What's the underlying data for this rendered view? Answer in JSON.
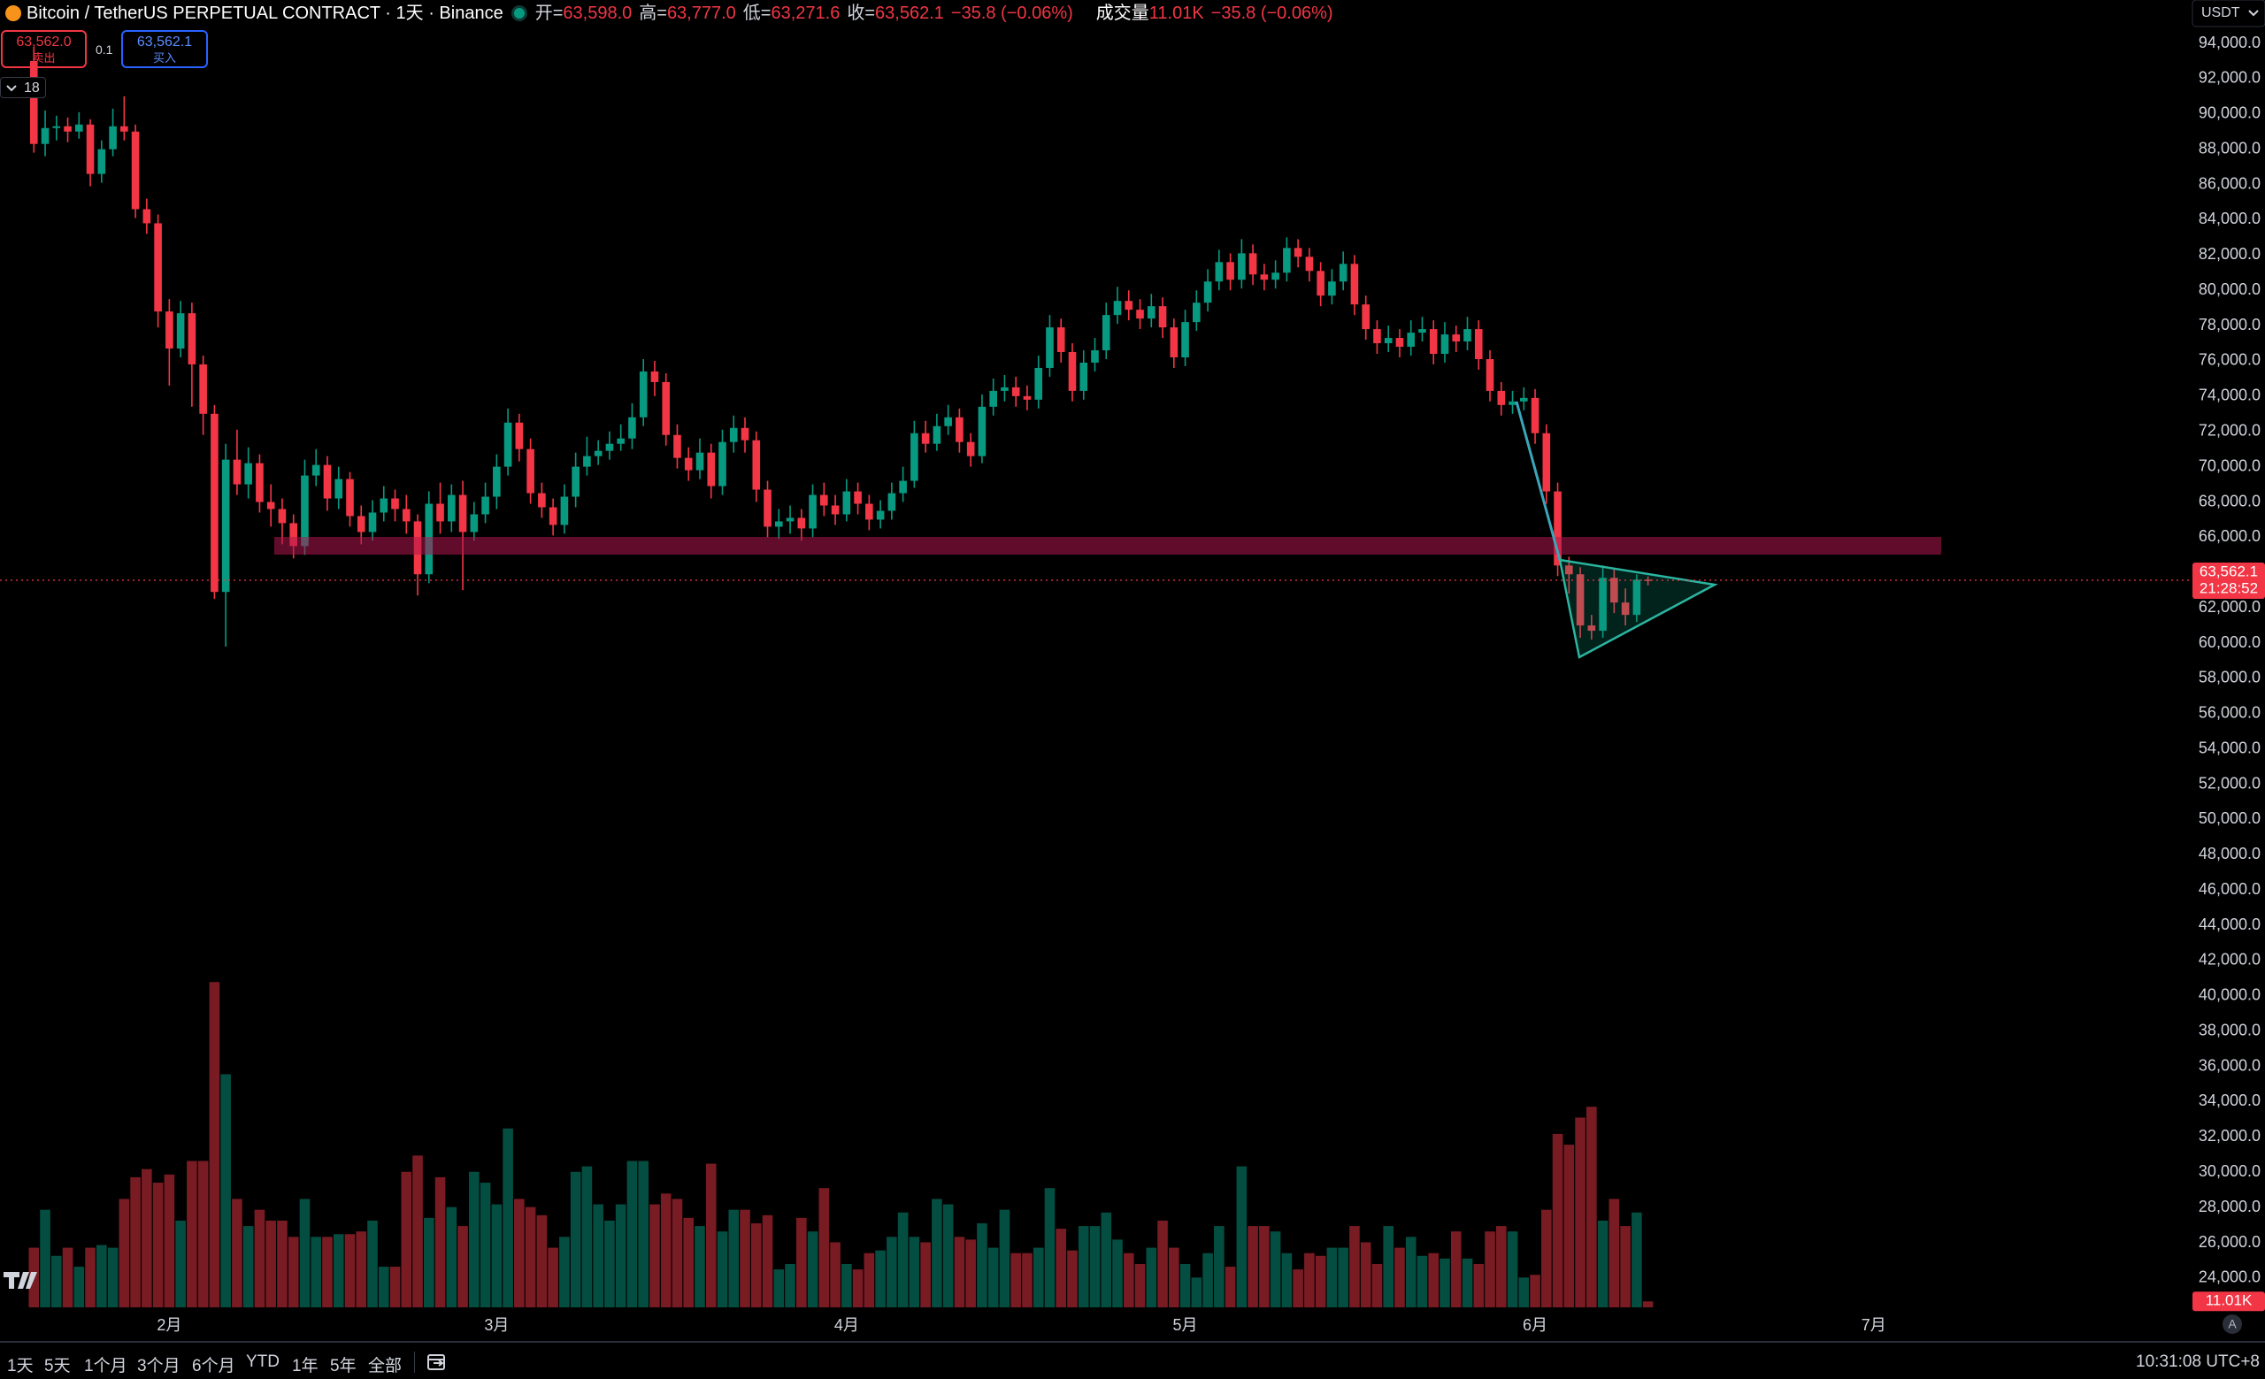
{
  "header": {
    "symbol": "Bitcoin / TetherUS PERPETUAL CONTRACT · 1天 · Binance",
    "ohlc": [
      {
        "label": "开=",
        "value": "63,598.0"
      },
      {
        "label": "高=",
        "value": "63,777.0"
      },
      {
        "label": "低=",
        "value": "63,271.6"
      },
      {
        "label": "收=",
        "value": "63,562.1"
      }
    ],
    "change": "−35.8 (−0.06%)",
    "volume_label": "成交量",
    "volume_value": "11.01K",
    "volume_change": "−35.8 (−0.06%)"
  },
  "order": {
    "sell_price": "63,562.0",
    "sell_label": "卖出",
    "qty": "0.1",
    "buy_price": "63,562.1",
    "buy_label": "买入"
  },
  "indicator_count": "18",
  "currency": "USDT",
  "auto_label": "A",
  "toolbar": {
    "ranges": [
      "1天",
      "5天",
      "1个月",
      "3个月",
      "6个月",
      "YTD",
      "1年",
      "5年",
      "全部"
    ],
    "time": "10:31:08 UTC+8"
  },
  "chart_data": {
    "type": "candlestick",
    "up_color": "#089981",
    "down_color": "#f23645",
    "grid": false,
    "xlim": [
      -3,
      191
    ],
    "xticks": [
      {
        "value": 12,
        "label": "2月"
      },
      {
        "value": 41,
        "label": "3月"
      },
      {
        "value": 72,
        "label": "4月"
      },
      {
        "value": 102,
        "label": "5月"
      },
      {
        "value": 133,
        "label": "6月"
      },
      {
        "value": 163,
        "label": "7月"
      }
    ],
    "ylim": [
      22340,
      96460
    ],
    "yticks": [
      {
        "value": 94000,
        "label": "94,000.0"
      },
      {
        "value": 92000,
        "label": "92,000.0"
      },
      {
        "value": 90000,
        "label": "90,000.0"
      },
      {
        "value": 88000,
        "label": "88,000.0"
      },
      {
        "value": 86000,
        "label": "86,000.0"
      },
      {
        "value": 84000,
        "label": "84,000.0"
      },
      {
        "value": 82000,
        "label": "82,000.0"
      },
      {
        "value": 80000,
        "label": "80,000.0"
      },
      {
        "value": 78000,
        "label": "78,000.0"
      },
      {
        "value": 76000,
        "label": "76,000.0"
      },
      {
        "value": 74000,
        "label": "74,000.0"
      },
      {
        "value": 72000,
        "label": "72,000.0"
      },
      {
        "value": 70000,
        "label": "70,000.0"
      },
      {
        "value": 68000,
        "label": "68,000.0"
      },
      {
        "value": 66000,
        "label": "66,000.0"
      },
      {
        "value": 64000,
        "label": "64,000.0"
      },
      {
        "value": 62000,
        "label": "62,000.0"
      },
      {
        "value": 60000,
        "label": "60,000.0"
      },
      {
        "value": 58000,
        "label": "58,000.0"
      },
      {
        "value": 56000,
        "label": "56,000.0"
      },
      {
        "value": 54000,
        "label": "54,000.0"
      },
      {
        "value": 52000,
        "label": "52,000.0"
      },
      {
        "value": 50000,
        "label": "50,000.0"
      },
      {
        "value": 48000,
        "label": "48,000.0"
      },
      {
        "value": 46000,
        "label": "46,000.0"
      },
      {
        "value": 44000,
        "label": "44,000.0"
      },
      {
        "value": 42000,
        "label": "42,000.0"
      },
      {
        "value": 40000,
        "label": "40,000.0"
      },
      {
        "value": 38000,
        "label": "38,000.0"
      },
      {
        "value": 36000,
        "label": "36,000.0"
      },
      {
        "value": 34000,
        "label": "34,000.0"
      },
      {
        "value": 32000,
        "label": "32,000.0"
      },
      {
        "value": 30000,
        "label": "30,000.0"
      },
      {
        "value": 28000,
        "label": "28,000.0"
      },
      {
        "value": 26000,
        "label": "26,000.0"
      },
      {
        "value": 24000,
        "label": "24,000.0"
      }
    ],
    "last_price_label": "63,562.1",
    "countdown": "21:28:52",
    "volume_ylim": [
      0,
      620000
    ],
    "volume_value_label": "11.01K",
    "candles": [
      [
        93000,
        93800,
        87800,
        88300
      ],
      [
        88300,
        90200,
        87600,
        89200
      ],
      [
        89200,
        89900,
        88500,
        89300
      ],
      [
        89300,
        89800,
        88400,
        89000
      ],
      [
        89000,
        90100,
        88600,
        89400
      ],
      [
        89400,
        89700,
        85900,
        86600
      ],
      [
        86600,
        88500,
        86100,
        88000
      ],
      [
        88000,
        90300,
        87600,
        89300
      ],
      [
        89300,
        91000,
        88500,
        89000
      ],
      [
        89000,
        89400,
        84100,
        84600
      ],
      [
        84600,
        85200,
        83200,
        83800
      ],
      [
        83800,
        84300,
        77900,
        78800
      ],
      [
        78800,
        79500,
        74600,
        76700
      ],
      [
        76700,
        79400,
        76200,
        78700
      ],
      [
        78700,
        79300,
        73400,
        75800
      ],
      [
        75800,
        76300,
        71800,
        73000
      ],
      [
        73000,
        73500,
        62500,
        62900
      ],
      [
        62900,
        71300,
        59800,
        70400
      ],
      [
        70400,
        72100,
        68400,
        69000
      ],
      [
        69000,
        71100,
        68200,
        70200
      ],
      [
        70200,
        70700,
        67400,
        68000
      ],
      [
        68000,
        69000,
        66600,
        67600
      ],
      [
        67600,
        68200,
        65600,
        66800
      ],
      [
        66800,
        67300,
        64800,
        65500
      ],
      [
        65500,
        70400,
        65000,
        69500
      ],
      [
        69500,
        71000,
        68900,
        70100
      ],
      [
        70100,
        70600,
        67500,
        68200
      ],
      [
        68200,
        70000,
        67600,
        69300
      ],
      [
        69300,
        69700,
        66600,
        67200
      ],
      [
        67200,
        67800,
        65600,
        66300
      ],
      [
        66300,
        68100,
        65800,
        67400
      ],
      [
        67400,
        68900,
        66900,
        68200
      ],
      [
        68200,
        68700,
        66900,
        67600
      ],
      [
        67600,
        68400,
        66200,
        66900
      ],
      [
        66900,
        67300,
        62700,
        63900
      ],
      [
        63900,
        68600,
        63400,
        67900
      ],
      [
        67900,
        69100,
        66200,
        66900
      ],
      [
        66900,
        69000,
        66300,
        68400
      ],
      [
        68400,
        69200,
        63000,
        66300
      ],
      [
        66300,
        68000,
        65800,
        67300
      ],
      [
        67300,
        69100,
        66800,
        68300
      ],
      [
        68300,
        70700,
        67600,
        70000
      ],
      [
        70000,
        73300,
        69500,
        72500
      ],
      [
        72500,
        73000,
        70300,
        71000
      ],
      [
        71000,
        71600,
        67900,
        68500
      ],
      [
        68500,
        69100,
        67100,
        67700
      ],
      [
        67700,
        68200,
        66100,
        66700
      ],
      [
        66700,
        69000,
        66200,
        68300
      ],
      [
        68300,
        70800,
        67700,
        70000
      ],
      [
        70000,
        71700,
        69500,
        70600
      ],
      [
        70600,
        71500,
        70100,
        70900
      ],
      [
        70900,
        72000,
        70400,
        71300
      ],
      [
        71300,
        72400,
        70900,
        71600
      ],
      [
        71600,
        73600,
        71000,
        72800
      ],
      [
        72800,
        76100,
        72300,
        75400
      ],
      [
        75400,
        76000,
        74000,
        74800
      ],
      [
        74800,
        75300,
        71200,
        71800
      ],
      [
        71800,
        72400,
        69900,
        70500
      ],
      [
        70500,
        71100,
        69200,
        69800
      ],
      [
        69800,
        71600,
        69300,
        70800
      ],
      [
        70800,
        71300,
        68200,
        68900
      ],
      [
        68900,
        72100,
        68400,
        71400
      ],
      [
        71400,
        72900,
        70800,
        72200
      ],
      [
        72200,
        72800,
        70800,
        71500
      ],
      [
        71500,
        72000,
        68000,
        68700
      ],
      [
        68700,
        69200,
        66000,
        66600
      ],
      [
        66600,
        67600,
        65900,
        66900
      ],
      [
        66900,
        67800,
        66200,
        67100
      ],
      [
        67100,
        67600,
        65800,
        66500
      ],
      [
        66500,
        69000,
        66000,
        68400
      ],
      [
        68400,
        69100,
        67200,
        67800
      ],
      [
        67800,
        68400,
        66700,
        67300
      ],
      [
        67300,
        69300,
        66900,
        68600
      ],
      [
        68600,
        69100,
        67300,
        67900
      ],
      [
        67900,
        68400,
        66400,
        67000
      ],
      [
        67000,
        68100,
        66500,
        67500
      ],
      [
        67500,
        69100,
        67000,
        68500
      ],
      [
        68500,
        70000,
        68000,
        69200
      ],
      [
        69200,
        72600,
        68800,
        71900
      ],
      [
        71900,
        72600,
        70800,
        71300
      ],
      [
        71300,
        73000,
        70900,
        72300
      ],
      [
        72300,
        73500,
        71800,
        72800
      ],
      [
        72800,
        73300,
        70800,
        71400
      ],
      [
        71400,
        71900,
        70000,
        70600
      ],
      [
        70600,
        74100,
        70200,
        73400
      ],
      [
        73400,
        75000,
        72900,
        74300
      ],
      [
        74300,
        75200,
        73700,
        74500
      ],
      [
        74500,
        75100,
        73400,
        74000
      ],
      [
        74000,
        74600,
        73200,
        73800
      ],
      [
        73800,
        76300,
        73300,
        75600
      ],
      [
        75600,
        78600,
        75100,
        77900
      ],
      [
        77900,
        78400,
        75900,
        76500
      ],
      [
        76500,
        77000,
        73700,
        74300
      ],
      [
        74300,
        76600,
        73800,
        75900
      ],
      [
        75900,
        77300,
        75400,
        76600
      ],
      [
        76600,
        79300,
        76100,
        78600
      ],
      [
        78600,
        80200,
        78100,
        79400
      ],
      [
        79400,
        80000,
        78300,
        78900
      ],
      [
        78900,
        79500,
        77800,
        78400
      ],
      [
        78400,
        79800,
        77900,
        79100
      ],
      [
        79100,
        79600,
        77300,
        77900
      ],
      [
        77900,
        78400,
        75600,
        76200
      ],
      [
        76200,
        78900,
        75700,
        78200
      ],
      [
        78200,
        80000,
        77700,
        79300
      ],
      [
        79300,
        81200,
        78800,
        80500
      ],
      [
        80500,
        82300,
        80000,
        81600
      ],
      [
        81600,
        82100,
        80000,
        80600
      ],
      [
        80600,
        82900,
        80100,
        82100
      ],
      [
        82100,
        82600,
        80300,
        80900
      ],
      [
        80900,
        81500,
        80000,
        80600
      ],
      [
        80600,
        81700,
        80100,
        81000
      ],
      [
        81000,
        83000,
        80500,
        82400
      ],
      [
        82400,
        82900,
        81300,
        81900
      ],
      [
        81900,
        82400,
        80500,
        81100
      ],
      [
        81100,
        81600,
        79100,
        79700
      ],
      [
        79700,
        81200,
        79200,
        80500
      ],
      [
        80500,
        82200,
        80000,
        81500
      ],
      [
        81500,
        82000,
        78600,
        79200
      ],
      [
        79200,
        79700,
        77200,
        77800
      ],
      [
        77800,
        78300,
        76400,
        77000
      ],
      [
        77000,
        78000,
        76500,
        77300
      ],
      [
        77300,
        77800,
        76200,
        76800
      ],
      [
        76800,
        78300,
        76300,
        77600
      ],
      [
        77600,
        78500,
        77100,
        77800
      ],
      [
        77800,
        78300,
        75800,
        76400
      ],
      [
        76400,
        78200,
        75900,
        77500
      ],
      [
        77500,
        78000,
        76500,
        77100
      ],
      [
        77100,
        78500,
        76600,
        77800
      ],
      [
        77800,
        78300,
        75500,
        76100
      ],
      [
        76100,
        76600,
        73700,
        74300
      ],
      [
        74300,
        74800,
        72900,
        73500
      ],
      [
        73500,
        74300,
        73000,
        73700
      ],
      [
        73700,
        74500,
        73200,
        73900
      ],
      [
        73900,
        74400,
        71300,
        71900
      ],
      [
        71900,
        72400,
        67900,
        68600
      ],
      [
        68600,
        69100,
        63800,
        64400
      ],
      [
        64400,
        64900,
        62800,
        63900
      ],
      [
        63900,
        64300,
        60300,
        61000
      ],
      [
        61000,
        61600,
        60200,
        60700
      ],
      [
        60700,
        64400,
        60300,
        63700
      ],
      [
        63700,
        64200,
        61700,
        62300
      ],
      [
        62300,
        63100,
        61000,
        61600
      ],
      [
        61600,
        63900,
        61200,
        63598
      ],
      [
        63598.0,
        63777.0,
        63271.6,
        63562.1
      ]
    ],
    "volume": [
      110000,
      180000,
      95000,
      110000,
      75000,
      110000,
      115000,
      110000,
      200000,
      240000,
      255000,
      230000,
      245000,
      160000,
      270000,
      270000,
      600000,
      430000,
      200000,
      150000,
      180000,
      160000,
      160000,
      130000,
      200000,
      130000,
      130000,
      135000,
      135000,
      140000,
      160000,
      75000,
      75000,
      250000,
      280000,
      165000,
      240000,
      185000,
      150000,
      250000,
      230000,
      190000,
      330000,
      200000,
      185000,
      170000,
      110000,
      130000,
      250000,
      260000,
      190000,
      160000,
      190000,
      270000,
      270000,
      190000,
      210000,
      200000,
      165000,
      150000,
      265000,
      140000,
      180000,
      180000,
      155000,
      170000,
      70000,
      80000,
      165000,
      140000,
      220000,
      120000,
      80000,
      70000,
      100000,
      105000,
      130000,
      175000,
      130000,
      120000,
      200000,
      190000,
      130000,
      125000,
      155000,
      110000,
      180000,
      100000,
      100000,
      110000,
      220000,
      145000,
      105000,
      150000,
      150000,
      175000,
      125000,
      100000,
      80000,
      110000,
      160000,
      110000,
      80000,
      55000,
      100000,
      150000,
      75000,
      260000,
      150000,
      150000,
      140000,
      100000,
      70000,
      100000,
      95000,
      110000,
      110000,
      150000,
      120000,
      80000,
      150000,
      110000,
      130000,
      95000,
      100000,
      90000,
      140000,
      90000,
      80000,
      140000,
      150000,
      140000,
      55000,
      60000,
      180000,
      320000,
      300000,
      350000,
      370000,
      160000,
      200000,
      150000,
      175000,
      11010
    ]
  }
}
